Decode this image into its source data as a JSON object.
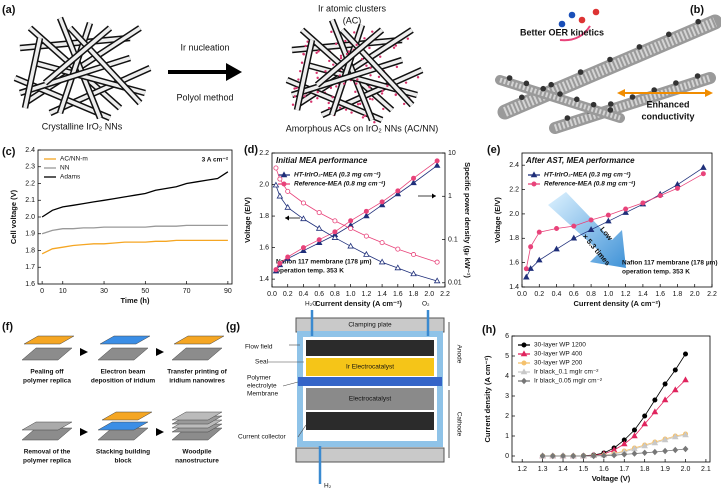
{
  "a": {
    "label": "(a)",
    "left_caption": "Crystalline IrO₂ NNs",
    "arrow_top": "Ir nucleation",
    "arrow_bottom": "Polyol method",
    "cluster_label": [
      "Ir atomic clusters",
      "(AC)"
    ],
    "right_caption": "Amorphous ACs on IrO₂ NNs (AC/NN)"
  },
  "b": {
    "label": "(b)",
    "top_note": "Better OER kinetics",
    "bottom_note": [
      "Enhanced",
      "conductivity"
    ]
  },
  "chart_data": [
    {
      "type": "line",
      "panel": "(c)",
      "xlabel": "Time (h)",
      "ylabel": "Cell voltage (V)",
      "annotations": [
        "3 A cm⁻²"
      ],
      "legend": "upper left",
      "x": [
        0,
        5,
        10,
        15,
        20,
        25,
        30,
        35,
        40,
        45,
        50,
        55,
        60,
        65,
        70,
        75,
        80,
        85,
        90
      ],
      "xlim": [
        -2,
        92
      ],
      "xticks": [
        0,
        10,
        30,
        50,
        70,
        90
      ],
      "ylim": [
        1.6,
        2.4
      ],
      "yticks": [
        1.6,
        1.7,
        1.8,
        1.9,
        {
          "value": 2,
          "label": "2.0"
        },
        2.1,
        2.2,
        2.3,
        2.4
      ],
      "series": [
        {
          "name": "AC/NN-m",
          "color": "#f5a623",
          "marker": "none",
          "values": [
            1.78,
            1.81,
            1.82,
            1.83,
            1.835,
            1.84,
            1.84,
            1.845,
            1.85,
            1.85,
            1.85,
            1.855,
            1.855,
            1.86,
            1.86,
            1.86,
            1.86,
            1.86,
            1.86
          ]
        },
        {
          "name": "NN",
          "color": "#999999",
          "marker": "none",
          "values": [
            1.9,
            1.92,
            1.93,
            1.93,
            1.935,
            1.935,
            1.94,
            1.94,
            1.94,
            1.94,
            1.94,
            1.945,
            1.945,
            1.945,
            1.95,
            1.95,
            1.95,
            1.95,
            1.95
          ]
        },
        {
          "name": "Adams",
          "color": "#000000",
          "marker": "none",
          "values": [
            2.0,
            2.04,
            2.06,
            2.07,
            2.08,
            2.09,
            2.1,
            2.11,
            2.12,
            2.13,
            2.14,
            2.16,
            2.17,
            2.18,
            2.2,
            2.21,
            2.22,
            2.23,
            2.27
          ]
        }
      ]
    },
    {
      "type": "line",
      "panel": "(d)",
      "title": "Initial MEA performance",
      "xlabel": "Current density (A cm⁻²)",
      "ylabel": "Voltage (E/V)",
      "y2label": "Specific power density (gᵢᵣ kW⁻¹)",
      "annotations": [
        "Nafion 117 membrane (178 µm)",
        "operation temp. 353 K"
      ],
      "legend": "upper left",
      "x": [
        0.05,
        0.1,
        0.2,
        0.4,
        0.6,
        0.8,
        1.0,
        1.2,
        1.4,
        1.6,
        1.8,
        2.1
      ],
      "xlim": [
        0,
        2.2
      ],
      "xticks": [
        {
          "value": 0,
          "label": "0.0"
        },
        0.2,
        0.4,
        0.6,
        0.8,
        {
          "value": 1,
          "label": "1.0"
        },
        1.2,
        1.4,
        1.6,
        1.8,
        {
          "value": 2,
          "label": "2.0"
        },
        2.2
      ],
      "ylim": [
        1.35,
        2.2
      ],
      "yticks": [
        1.4,
        1.6,
        1.8,
        {
          "value": 2,
          "label": "2.0"
        },
        2.2
      ],
      "y2lim": [
        0.008,
        10
      ],
      "y2ticks": [
        0.01,
        0.1,
        1,
        10
      ],
      "y2log": true,
      "series": [
        {
          "name": "HT-IrIrO₂-MEA (0.3 mg cm⁻²)",
          "color": "#1f2f7a",
          "marker": "triangle",
          "values": [
            1.45,
            1.49,
            1.53,
            1.58,
            1.63,
            1.68,
            1.74,
            1.8,
            1.87,
            1.94,
            2.01,
            2.12
          ]
        },
        {
          "name": "Reference-MEA (0.8 mg cm⁻²)",
          "color": "#e8437a",
          "marker": "circle",
          "values": [
            1.46,
            1.5,
            1.54,
            1.6,
            1.65,
            1.7,
            1.77,
            1.83,
            1.89,
            1.96,
            2.04,
            2.15
          ]
        },
        {
          "color": "#1f2f7a",
          "marker": "open-triangle",
          "axis": "y2",
          "values": [
            1.8,
            1.0,
            0.55,
            0.3,
            0.18,
            0.11,
            0.07,
            0.045,
            0.03,
            0.022,
            0.016,
            0.011
          ]
        },
        {
          "color": "#e8437a",
          "marker": "open-circle",
          "axis": "y2",
          "values": [
            4.5,
            2.5,
            1.3,
            0.7,
            0.42,
            0.27,
            0.18,
            0.12,
            0.085,
            0.06,
            0.045,
            0.03
          ]
        }
      ]
    },
    {
      "type": "line",
      "panel": "(e)",
      "title": "After AST, MEA performance",
      "xlabel": "Current density (A cm⁻²)",
      "ylabel": "Voltage (E/V)",
      "annotations": [
        "Low",
        "× 5.3 times",
        "Nafion 117 membrane (178 µm)",
        "operation temp. 353 K"
      ],
      "legend": "upper left",
      "x": [
        0.05,
        0.1,
        0.2,
        0.4,
        0.6,
        0.8,
        1.0,
        1.2,
        1.4,
        1.6,
        1.8,
        2.1
      ],
      "xlim": [
        0,
        2.2
      ],
      "xticks": [
        {
          "value": 0,
          "label": "0.0"
        },
        0.2,
        0.4,
        0.6,
        0.8,
        {
          "value": 1,
          "label": "1.0"
        },
        1.2,
        1.4,
        1.6,
        1.8,
        {
          "value": 2,
          "label": "2.0"
        },
        2.2
      ],
      "ylim": [
        1.4,
        2.5
      ],
      "yticks": [
        1.4,
        1.6,
        1.8,
        {
          "value": 2,
          "label": "2.0"
        },
        2.2,
        2.4
      ],
      "series": [
        {
          "name": "HT-IrIrO₂-MEA (0.3 mg cm⁻²)",
          "color": "#1f2f7a",
          "marker": "triangle",
          "values": [
            1.48,
            1.55,
            1.62,
            1.71,
            1.8,
            1.87,
            1.94,
            2.01,
            2.08,
            2.16,
            2.24,
            2.38
          ]
        },
        {
          "name": "Reference-MEA (0.8 mg cm⁻²)",
          "color": "#e8437a",
          "marker": "circle",
          "values": [
            1.55,
            1.73,
            1.85,
            1.88,
            1.9,
            1.95,
            1.99,
            2.04,
            2.09,
            2.15,
            2.21,
            2.33
          ]
        }
      ]
    },
    {
      "type": "line",
      "panel": "(h)",
      "xlabel": "Voltage (V)",
      "ylabel": "Current density (A cm⁻²)",
      "legend": "upper left",
      "x": [
        1.3,
        1.35,
        1.4,
        1.45,
        1.5,
        1.55,
        1.6,
        1.65,
        1.7,
        1.75,
        1.8,
        1.85,
        1.9,
        1.95,
        2.0
      ],
      "xlim": [
        1.15,
        2.12
      ],
      "xticks": [
        1.2,
        1.3,
        1.4,
        1.5,
        1.6,
        1.7,
        1.8,
        1.9,
        {
          "value": 2,
          "label": "2.0"
        },
        2.1
      ],
      "ylim": [
        -0.3,
        6
      ],
      "yticks": [
        0,
        1,
        2,
        3,
        4,
        5,
        6
      ],
      "series": [
        {
          "name": "30-layer WP 1200",
          "color": "#000000",
          "marker": "circle",
          "values": [
            0,
            0,
            0,
            0,
            0.01,
            0.05,
            0.15,
            0.4,
            0.8,
            1.3,
            2.0,
            2.8,
            3.6,
            4.3,
            5.1
          ]
        },
        {
          "name": "30-layer WP 400",
          "color": "#e0245e",
          "marker": "triangle",
          "values": [
            0,
            0,
            0,
            0,
            0,
            0.03,
            0.1,
            0.3,
            0.6,
            1.0,
            1.6,
            2.2,
            2.8,
            3.3,
            3.8
          ]
        },
        {
          "name": "30-layer WP 200",
          "color": "#f5c16c",
          "marker": "circle",
          "values": [
            0,
            0,
            0,
            0,
            0,
            0.01,
            0.05,
            0.12,
            0.25,
            0.4,
            0.55,
            0.7,
            0.85,
            1.0,
            1.1
          ]
        },
        {
          "name": "Ir black_0.1 mgIr cm⁻²",
          "color": "#c8c8c8",
          "marker": "triangle",
          "values": [
            0,
            0,
            0,
            0,
            0,
            0.01,
            0.04,
            0.1,
            0.2,
            0.35,
            0.5,
            0.65,
            0.8,
            0.95,
            1.05
          ]
        },
        {
          "name": "Ir black_0.05 mgIr cm⁻²",
          "color": "#777777",
          "marker": "diamond",
          "values": [
            0,
            0,
            0,
            0,
            0,
            0,
            0.02,
            0.04,
            0.08,
            0.12,
            0.16,
            0.2,
            0.25,
            0.3,
            0.35
          ]
        }
      ]
    }
  ],
  "f": {
    "label": "(f)",
    "steps": [
      [
        "Pealing off",
        "polymer replica"
      ],
      [
        "Electron beam",
        "deposition of iridium"
      ],
      [
        "Transfer printing of",
        "iridium nanowires"
      ],
      [
        "Removal of the",
        "polymer replica"
      ],
      [
        "Stacking building",
        "block"
      ],
      [
        "Woodpile",
        "nanostructure"
      ]
    ]
  },
  "g": {
    "label": "(g)",
    "inlet": "H₂O",
    "outlet_o2": "O₂",
    "outlet_h2": "H₂",
    "clamping_plate": "Clamping plate",
    "flow_field": "Flow field",
    "seal": "Seal",
    "membrane": [
      "Polymer",
      "electrolyte",
      "Membrane"
    ],
    "current_collector": "Current collector",
    "anode_catalyst": "Ir Electrocatalyst",
    "cathode_catalyst": "Electrocatalyst",
    "anode": "Anode",
    "cathode": "Cathode"
  }
}
